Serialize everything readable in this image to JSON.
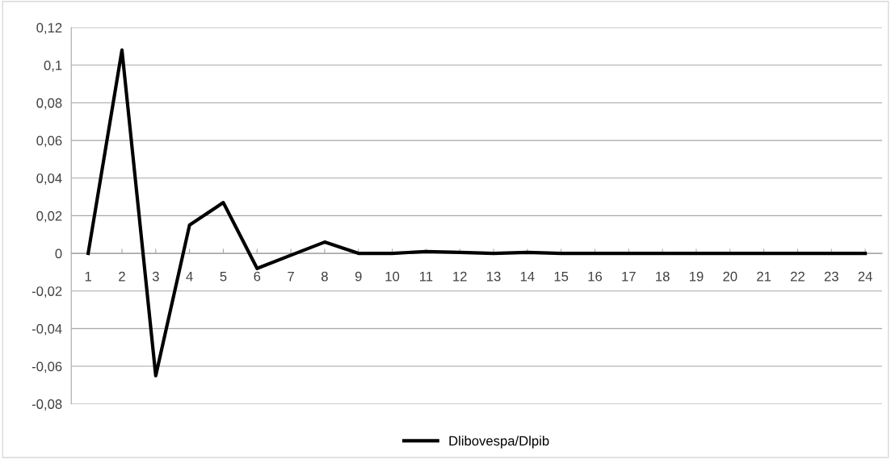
{
  "chart_data": {
    "type": "line",
    "categories": [
      "1",
      "2",
      "3",
      "4",
      "5",
      "6",
      "7",
      "8",
      "9",
      "10",
      "11",
      "12",
      "13",
      "14",
      "15",
      "16",
      "17",
      "18",
      "19",
      "20",
      "21",
      "22",
      "23",
      "24"
    ],
    "series": [
      {
        "name": "Dlibovespa/Dlpib",
        "color": "#000000",
        "values": [
          0,
          0.108,
          -0.065,
          0.015,
          0.027,
          -0.008,
          -0.001,
          0.006,
          0,
          0,
          0.001,
          0.0005,
          0,
          0.0005,
          0,
          0,
          0,
          0,
          0,
          0,
          0,
          0,
          0,
          0
        ]
      }
    ],
    "ylim": [
      -0.08,
      0.12
    ],
    "yticks": [
      {
        "value": -0.08,
        "label": "-0,08"
      },
      {
        "value": -0.06,
        "label": "-0,06"
      },
      {
        "value": -0.04,
        "label": "-0,04"
      },
      {
        "value": -0.02,
        "label": "-0,02"
      },
      {
        "value": 0,
        "label": "0"
      },
      {
        "value": 0.02,
        "label": "0,02"
      },
      {
        "value": 0.04,
        "label": "0,04"
      },
      {
        "value": 0.06,
        "label": "0,06"
      },
      {
        "value": 0.08,
        "label": "0,08"
      },
      {
        "value": 0.1,
        "label": "0,1"
      },
      {
        "value": 0.12,
        "label": "0,12"
      }
    ],
    "grid": "y",
    "legend": "bottom",
    "marker": "none",
    "line_style": "solid"
  }
}
